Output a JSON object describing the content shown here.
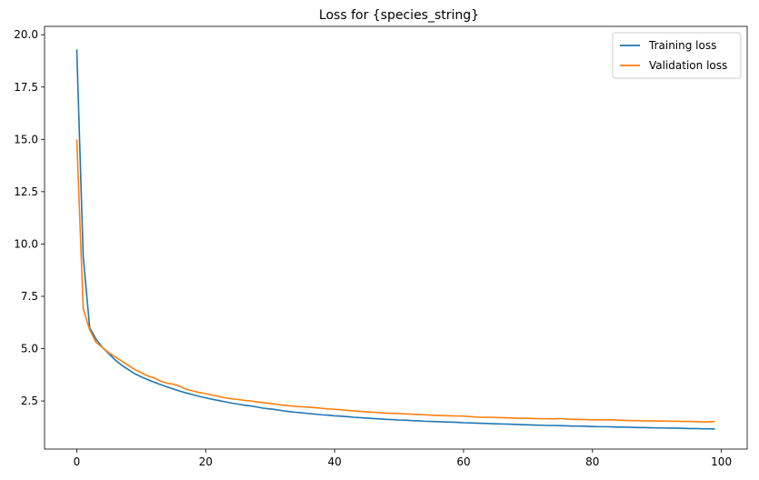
{
  "chart_data": {
    "type": "line",
    "title": "Loss for {species_string}",
    "xlabel": "",
    "ylabel": "",
    "xlim": [
      -5,
      104
    ],
    "ylim": [
      0.2,
      20.4
    ],
    "xticks": [
      0,
      20,
      40,
      60,
      80,
      100
    ],
    "xtick_labels": [
      "0",
      "20",
      "40",
      "60",
      "80",
      "100"
    ],
    "yticks": [
      2.5,
      5.0,
      7.5,
      10.0,
      12.5,
      15.0,
      17.5,
      20.0
    ],
    "ytick_labels": [
      "2.5",
      "5.0",
      "7.5",
      "10.0",
      "12.5",
      "15.0",
      "17.5",
      "20.0"
    ],
    "grid": false,
    "legend_placement": "top-right",
    "series": [
      {
        "name": "Training loss",
        "color": "#1f77b4",
        "x": [
          0,
          1,
          2,
          3,
          4,
          5,
          6,
          7,
          8,
          9,
          10,
          11,
          12,
          13,
          14,
          15,
          16,
          17,
          18,
          19,
          20,
          21,
          22,
          23,
          24,
          25,
          26,
          27,
          28,
          29,
          30,
          31,
          32,
          33,
          34,
          35,
          36,
          37,
          38,
          39,
          40,
          41,
          42,
          43,
          44,
          45,
          46,
          47,
          48,
          49,
          50,
          51,
          52,
          53,
          54,
          55,
          56,
          57,
          58,
          59,
          60,
          61,
          62,
          63,
          64,
          65,
          66,
          67,
          68,
          69,
          70,
          71,
          72,
          73,
          74,
          75,
          76,
          77,
          78,
          79,
          80,
          81,
          82,
          83,
          84,
          85,
          86,
          87,
          88,
          89,
          90,
          91,
          92,
          93,
          94,
          95,
          96,
          97,
          98,
          99
        ],
        "values": [
          19.3,
          9.4,
          6.0,
          5.45,
          5.05,
          4.75,
          4.45,
          4.2,
          4.0,
          3.8,
          3.65,
          3.52,
          3.4,
          3.28,
          3.17,
          3.07,
          2.97,
          2.88,
          2.8,
          2.72,
          2.65,
          2.58,
          2.52,
          2.46,
          2.4,
          2.35,
          2.3,
          2.26,
          2.21,
          2.15,
          2.12,
          2.08,
          2.03,
          1.99,
          1.96,
          1.93,
          1.9,
          1.87,
          1.84,
          1.82,
          1.79,
          1.77,
          1.75,
          1.72,
          1.7,
          1.68,
          1.66,
          1.64,
          1.62,
          1.61,
          1.59,
          1.58,
          1.56,
          1.55,
          1.53,
          1.52,
          1.51,
          1.5,
          1.49,
          1.48,
          1.46,
          1.45,
          1.44,
          1.43,
          1.42,
          1.41,
          1.4,
          1.39,
          1.38,
          1.37,
          1.36,
          1.35,
          1.34,
          1.33,
          1.33,
          1.32,
          1.31,
          1.3,
          1.3,
          1.29,
          1.28,
          1.27,
          1.27,
          1.26,
          1.25,
          1.25,
          1.24,
          1.23,
          1.23,
          1.22,
          1.21,
          1.21,
          1.2,
          1.2,
          1.19,
          1.18,
          1.18,
          1.17,
          1.17,
          1.16
        ]
      },
      {
        "name": "Validation loss",
        "color": "#ff7f0e",
        "x": [
          0,
          1,
          2,
          3,
          4,
          5,
          6,
          7,
          8,
          9,
          10,
          11,
          12,
          13,
          14,
          15,
          16,
          17,
          18,
          19,
          20,
          21,
          22,
          23,
          24,
          25,
          26,
          27,
          28,
          29,
          30,
          31,
          32,
          33,
          34,
          35,
          36,
          37,
          38,
          39,
          40,
          41,
          42,
          43,
          44,
          45,
          46,
          47,
          48,
          49,
          50,
          51,
          52,
          53,
          54,
          55,
          56,
          57,
          58,
          59,
          60,
          61,
          62,
          63,
          64,
          65,
          66,
          67,
          68,
          69,
          70,
          71,
          72,
          73,
          74,
          75,
          76,
          77,
          78,
          79,
          80,
          81,
          82,
          83,
          84,
          85,
          86,
          87,
          88,
          89,
          90,
          91,
          92,
          93,
          94,
          95,
          96,
          97,
          98,
          99
        ],
        "values": [
          15.0,
          6.9,
          5.9,
          5.3,
          5.05,
          4.8,
          4.6,
          4.4,
          4.2,
          4.0,
          3.85,
          3.7,
          3.6,
          3.45,
          3.35,
          3.3,
          3.2,
          3.05,
          2.98,
          2.9,
          2.85,
          2.78,
          2.72,
          2.65,
          2.6,
          2.57,
          2.53,
          2.5,
          2.45,
          2.42,
          2.38,
          2.34,
          2.3,
          2.27,
          2.24,
          2.22,
          2.2,
          2.18,
          2.15,
          2.12,
          2.1,
          2.08,
          2.05,
          2.02,
          2.0,
          1.98,
          1.96,
          1.94,
          1.92,
          1.91,
          1.9,
          1.88,
          1.87,
          1.85,
          1.84,
          1.82,
          1.81,
          1.8,
          1.79,
          1.78,
          1.78,
          1.75,
          1.73,
          1.72,
          1.72,
          1.71,
          1.7,
          1.69,
          1.68,
          1.67,
          1.67,
          1.66,
          1.65,
          1.65,
          1.64,
          1.66,
          1.63,
          1.62,
          1.62,
          1.61,
          1.6,
          1.6,
          1.59,
          1.6,
          1.58,
          1.57,
          1.56,
          1.56,
          1.55,
          1.55,
          1.54,
          1.54,
          1.53,
          1.53,
          1.52,
          1.52,
          1.51,
          1.5,
          1.5,
          1.52
        ]
      }
    ]
  }
}
